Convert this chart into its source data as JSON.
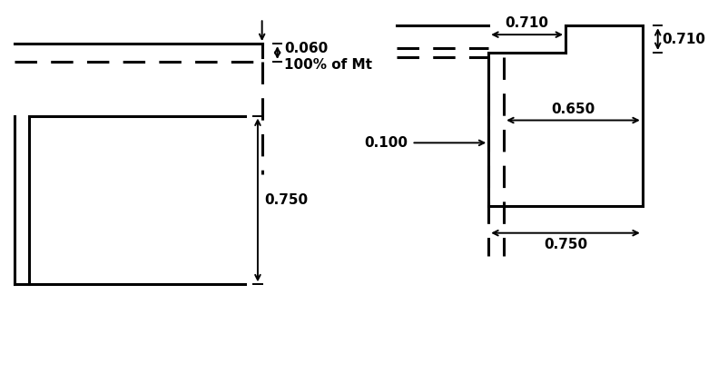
{
  "bg_color": "#ffffff",
  "line_color": "#000000",
  "lw": 2.2,
  "lw_dim": 1.4,
  "fig_width": 7.8,
  "fig_height": 4.22,
  "dpi": 100
}
